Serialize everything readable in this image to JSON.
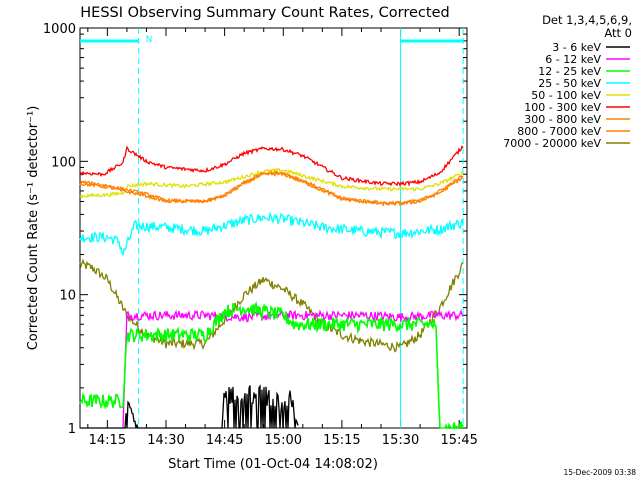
{
  "chart_data": {
    "type": "line",
    "title": "HESSI Observing Summary Count Rates, Corrected",
    "xlabel": "Start Time (01-Oct-04 14:08:02)",
    "ylabel": "Corrected Count Rate (s⁻¹ detector⁻¹)",
    "yscale": "log",
    "ylim": [
      1,
      1000
    ],
    "xlim_minutes": [
      608,
      707
    ],
    "x_ticks": [
      {
        "t": 615,
        "label": "14:15"
      },
      {
        "t": 630,
        "label": "14:30"
      },
      {
        "t": 645,
        "label": "14:45"
      },
      {
        "t": 660,
        "label": "15:00"
      },
      {
        "t": 675,
        "label": "15:15"
      },
      {
        "t": 690,
        "label": "15:30"
      },
      {
        "t": 705,
        "label": "15:45"
      }
    ],
    "y_ticks": [
      {
        "v": 1,
        "label": "1"
      },
      {
        "v": 10,
        "label": "10"
      },
      {
        "v": 100,
        "label": "100"
      },
      {
        "v": 1000,
        "label": "1000"
      }
    ],
    "legend_title": [
      "Det 1,3,4,5,6,9,",
      "Att 0"
    ],
    "legend_position": "right",
    "night_marks": {
      "label": "N",
      "bars": [
        [
          608,
          623
        ],
        [
          690,
          706
        ]
      ]
    },
    "boundaries": {
      "solid": [
        608,
        690
      ],
      "dashed": [
        623,
        706
      ]
    },
    "series": [
      {
        "name": "3 - 6 keV",
        "color": "#000000",
        "x": [
          608,
          619,
          620,
          623,
          644,
          645,
          655,
          660,
          662,
          664
        ],
        "y": [
          1,
          1,
          1.5,
          1,
          1,
          1.8,
          1.8,
          1.5,
          1.7,
          1
        ]
      },
      {
        "name": "6 - 12 keV",
        "color": "#ff00ff",
        "x": [
          619,
          620,
          630,
          640,
          650,
          660,
          670,
          680,
          690,
          700,
          706
        ],
        "y": [
          1,
          7,
          7,
          7,
          6.8,
          7,
          7,
          7,
          6.8,
          7,
          7
        ]
      },
      {
        "name": "12 - 25 keV",
        "color": "#00ff00",
        "x": [
          608,
          619,
          620,
          630,
          640,
          645,
          650,
          655,
          660,
          663,
          670,
          680,
          690,
          699,
          700,
          706
        ],
        "y": [
          1.6,
          1.6,
          5,
          5,
          5,
          7.5,
          8,
          7.5,
          7,
          6,
          6,
          6,
          6,
          6,
          1,
          1
        ]
      },
      {
        "name": "25 - 50 keV",
        "color": "#00ffff",
        "x": [
          608,
          615,
          618,
          619,
          622,
          630,
          640,
          645,
          650,
          655,
          660,
          670,
          680,
          690,
          700,
          706
        ],
        "y": [
          27,
          27,
          25,
          20,
          33,
          32,
          30,
          33,
          36,
          38,
          37,
          32,
          30,
          29,
          31,
          35
        ]
      },
      {
        "name": "50 - 100 keV",
        "color": "#e0e000",
        "x": [
          608,
          615,
          619,
          620,
          625,
          635,
          645,
          655,
          660,
          665,
          675,
          685,
          695,
          700,
          706
        ],
        "y": [
          55,
          56,
          58,
          65,
          68,
          65,
          70,
          84,
          86,
          78,
          65,
          62,
          62,
          68,
          82
        ]
      },
      {
        "name": "100 - 300 keV",
        "color": "#ff0000",
        "x": [
          608,
          614,
          617,
          619,
          620,
          625,
          630,
          640,
          645,
          650,
          655,
          660,
          665,
          675,
          685,
          690,
          695,
          700,
          706
        ],
        "y": [
          82,
          80,
          90,
          98,
          125,
          100,
          90,
          85,
          95,
          115,
          125,
          123,
          110,
          75,
          68,
          68,
          70,
          82,
          130
        ]
      },
      {
        "name": "300 - 800 keV",
        "color": "#ff8000",
        "x": [
          608,
          612,
          616,
          619,
          625,
          630,
          640,
          645,
          650,
          655,
          660,
          665,
          675,
          685,
          690,
          695,
          700,
          706
        ],
        "y": [
          68,
          66,
          63,
          60,
          55,
          50,
          50,
          55,
          68,
          80,
          80,
          70,
          52,
          48,
          48,
          50,
          58,
          76
        ]
      },
      {
        "name": "800 - 7000 keV",
        "color": "#ff8000",
        "x": [
          608,
          612,
          616,
          619,
          625,
          630,
          640,
          645,
          650,
          655,
          660,
          665,
          675,
          685,
          690,
          695,
          700,
          706
        ],
        "y": [
          70,
          68,
          65,
          62,
          57,
          51,
          50,
          56,
          70,
          82,
          82,
          72,
          53,
          49,
          49,
          51,
          60,
          78
        ]
      },
      {
        "name": "7000 - 20000 keV",
        "color": "#808000",
        "x": [
          608,
          611,
          615,
          620,
          625,
          630,
          640,
          645,
          650,
          655,
          660,
          665,
          670,
          675,
          680,
          690,
          695,
          700,
          706
        ],
        "y": [
          17,
          16,
          13,
          7,
          5,
          4.3,
          4.3,
          6.5,
          10,
          13,
          11,
          8.5,
          6,
          5,
          4.5,
          4,
          5,
          8,
          17
        ]
      }
    ],
    "footer_date": "15-Dec-2009 03:38"
  }
}
